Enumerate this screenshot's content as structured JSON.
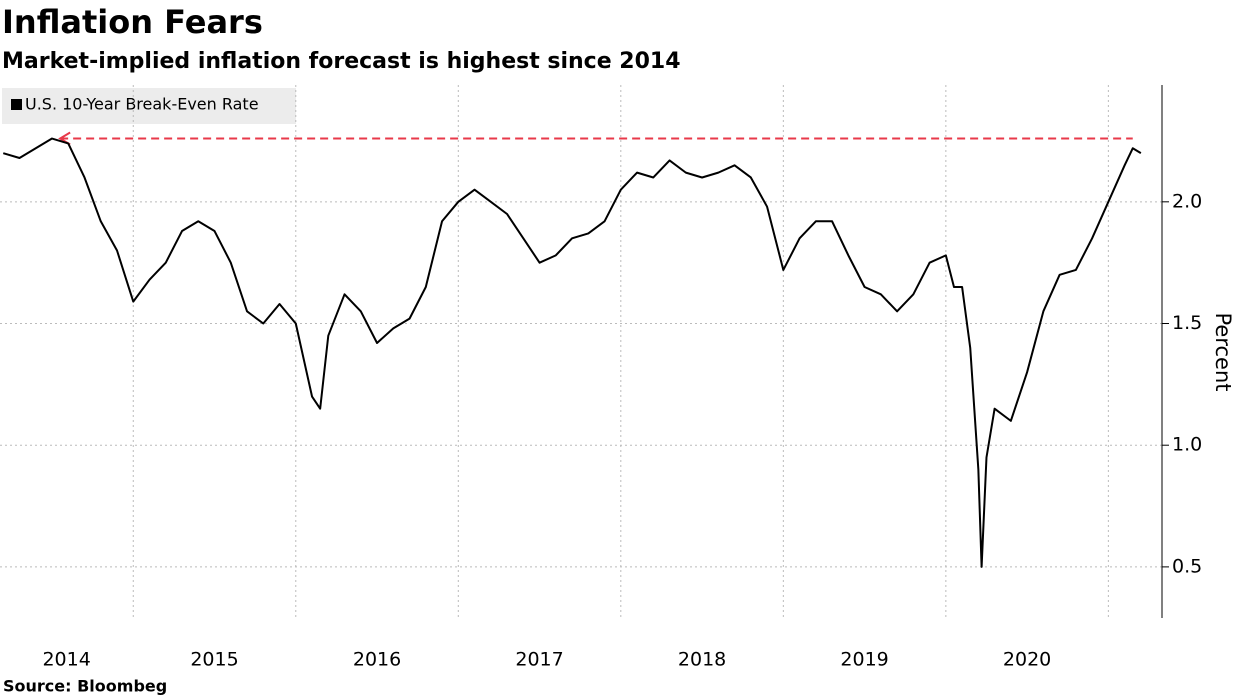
{
  "chart_data": {
    "type": "line",
    "title": "Inflation Fears",
    "subtitle": "Market-implied inflation forecast is highest since 2014",
    "source": "Source: Bloombeg",
    "y_label": "Percent",
    "series": [
      {
        "name": "U.S. 10-Year Break-Even Rate",
        "color": "#000000",
        "x": [
          2014.2,
          2014.3,
          2014.4,
          2014.5,
          2014.6,
          2014.7,
          2014.8,
          2014.9,
          2015.0,
          2015.1,
          2015.2,
          2015.3,
          2015.4,
          2015.5,
          2015.6,
          2015.7,
          2015.8,
          2015.9,
          2016.0,
          2016.1,
          2016.15,
          2016.2,
          2016.3,
          2016.4,
          2016.5,
          2016.6,
          2016.7,
          2016.8,
          2016.9,
          2017.0,
          2017.1,
          2017.2,
          2017.3,
          2017.4,
          2017.5,
          2017.6,
          2017.7,
          2017.8,
          2017.9,
          2018.0,
          2018.1,
          2018.2,
          2018.3,
          2018.4,
          2018.5,
          2018.6,
          2018.7,
          2018.8,
          2018.9,
          2019.0,
          2019.1,
          2019.2,
          2019.3,
          2019.4,
          2019.5,
          2019.6,
          2019.7,
          2019.8,
          2019.9,
          2020.0,
          2020.05,
          2020.1,
          2020.15,
          2020.2,
          2020.22,
          2020.25,
          2020.3,
          2020.4,
          2020.5,
          2020.6,
          2020.7,
          2020.8,
          2020.9,
          2021.0,
          2021.1,
          2021.15,
          2021.2
        ],
        "values": [
          2.2,
          2.18,
          2.22,
          2.26,
          2.24,
          2.1,
          1.92,
          1.8,
          1.59,
          1.68,
          1.75,
          1.88,
          1.92,
          1.88,
          1.75,
          1.55,
          1.5,
          1.58,
          1.5,
          1.2,
          1.15,
          1.45,
          1.62,
          1.55,
          1.42,
          1.48,
          1.52,
          1.65,
          1.92,
          2.0,
          2.05,
          2.0,
          1.95,
          1.85,
          1.75,
          1.78,
          1.85,
          1.87,
          1.92,
          2.05,
          2.12,
          2.1,
          2.17,
          2.12,
          2.1,
          2.12,
          2.15,
          2.1,
          1.98,
          1.72,
          1.85,
          1.92,
          1.92,
          1.78,
          1.65,
          1.62,
          1.55,
          1.62,
          1.75,
          1.78,
          1.65,
          1.65,
          1.4,
          0.9,
          0.5,
          0.95,
          1.15,
          1.1,
          1.3,
          1.55,
          1.7,
          1.72,
          1.85,
          2.0,
          2.15,
          2.22,
          2.2
        ]
      }
    ],
    "reference_line": {
      "value": 2.26,
      "x": [
        2014.55,
        2021.15
      ],
      "color": "#e8394a"
    },
    "xlim": [
      2014.18,
      2021.33
    ],
    "xticks": [
      2014,
      2015,
      2016,
      2017,
      2018,
      2019,
      2020
    ],
    "xgrid": [
      2015,
      2016,
      2017,
      2018,
      2019,
      2020,
      2021
    ],
    "ylim": [
      0.29,
      2.48
    ],
    "yticks": [
      {
        "value": 0.5,
        "label": "0.5"
      },
      {
        "value": 1,
        "label": "1.0"
      },
      {
        "value": 1.5,
        "label": "1.5"
      },
      {
        "value": 2,
        "label": "2.0"
      }
    ],
    "grid": true
  }
}
